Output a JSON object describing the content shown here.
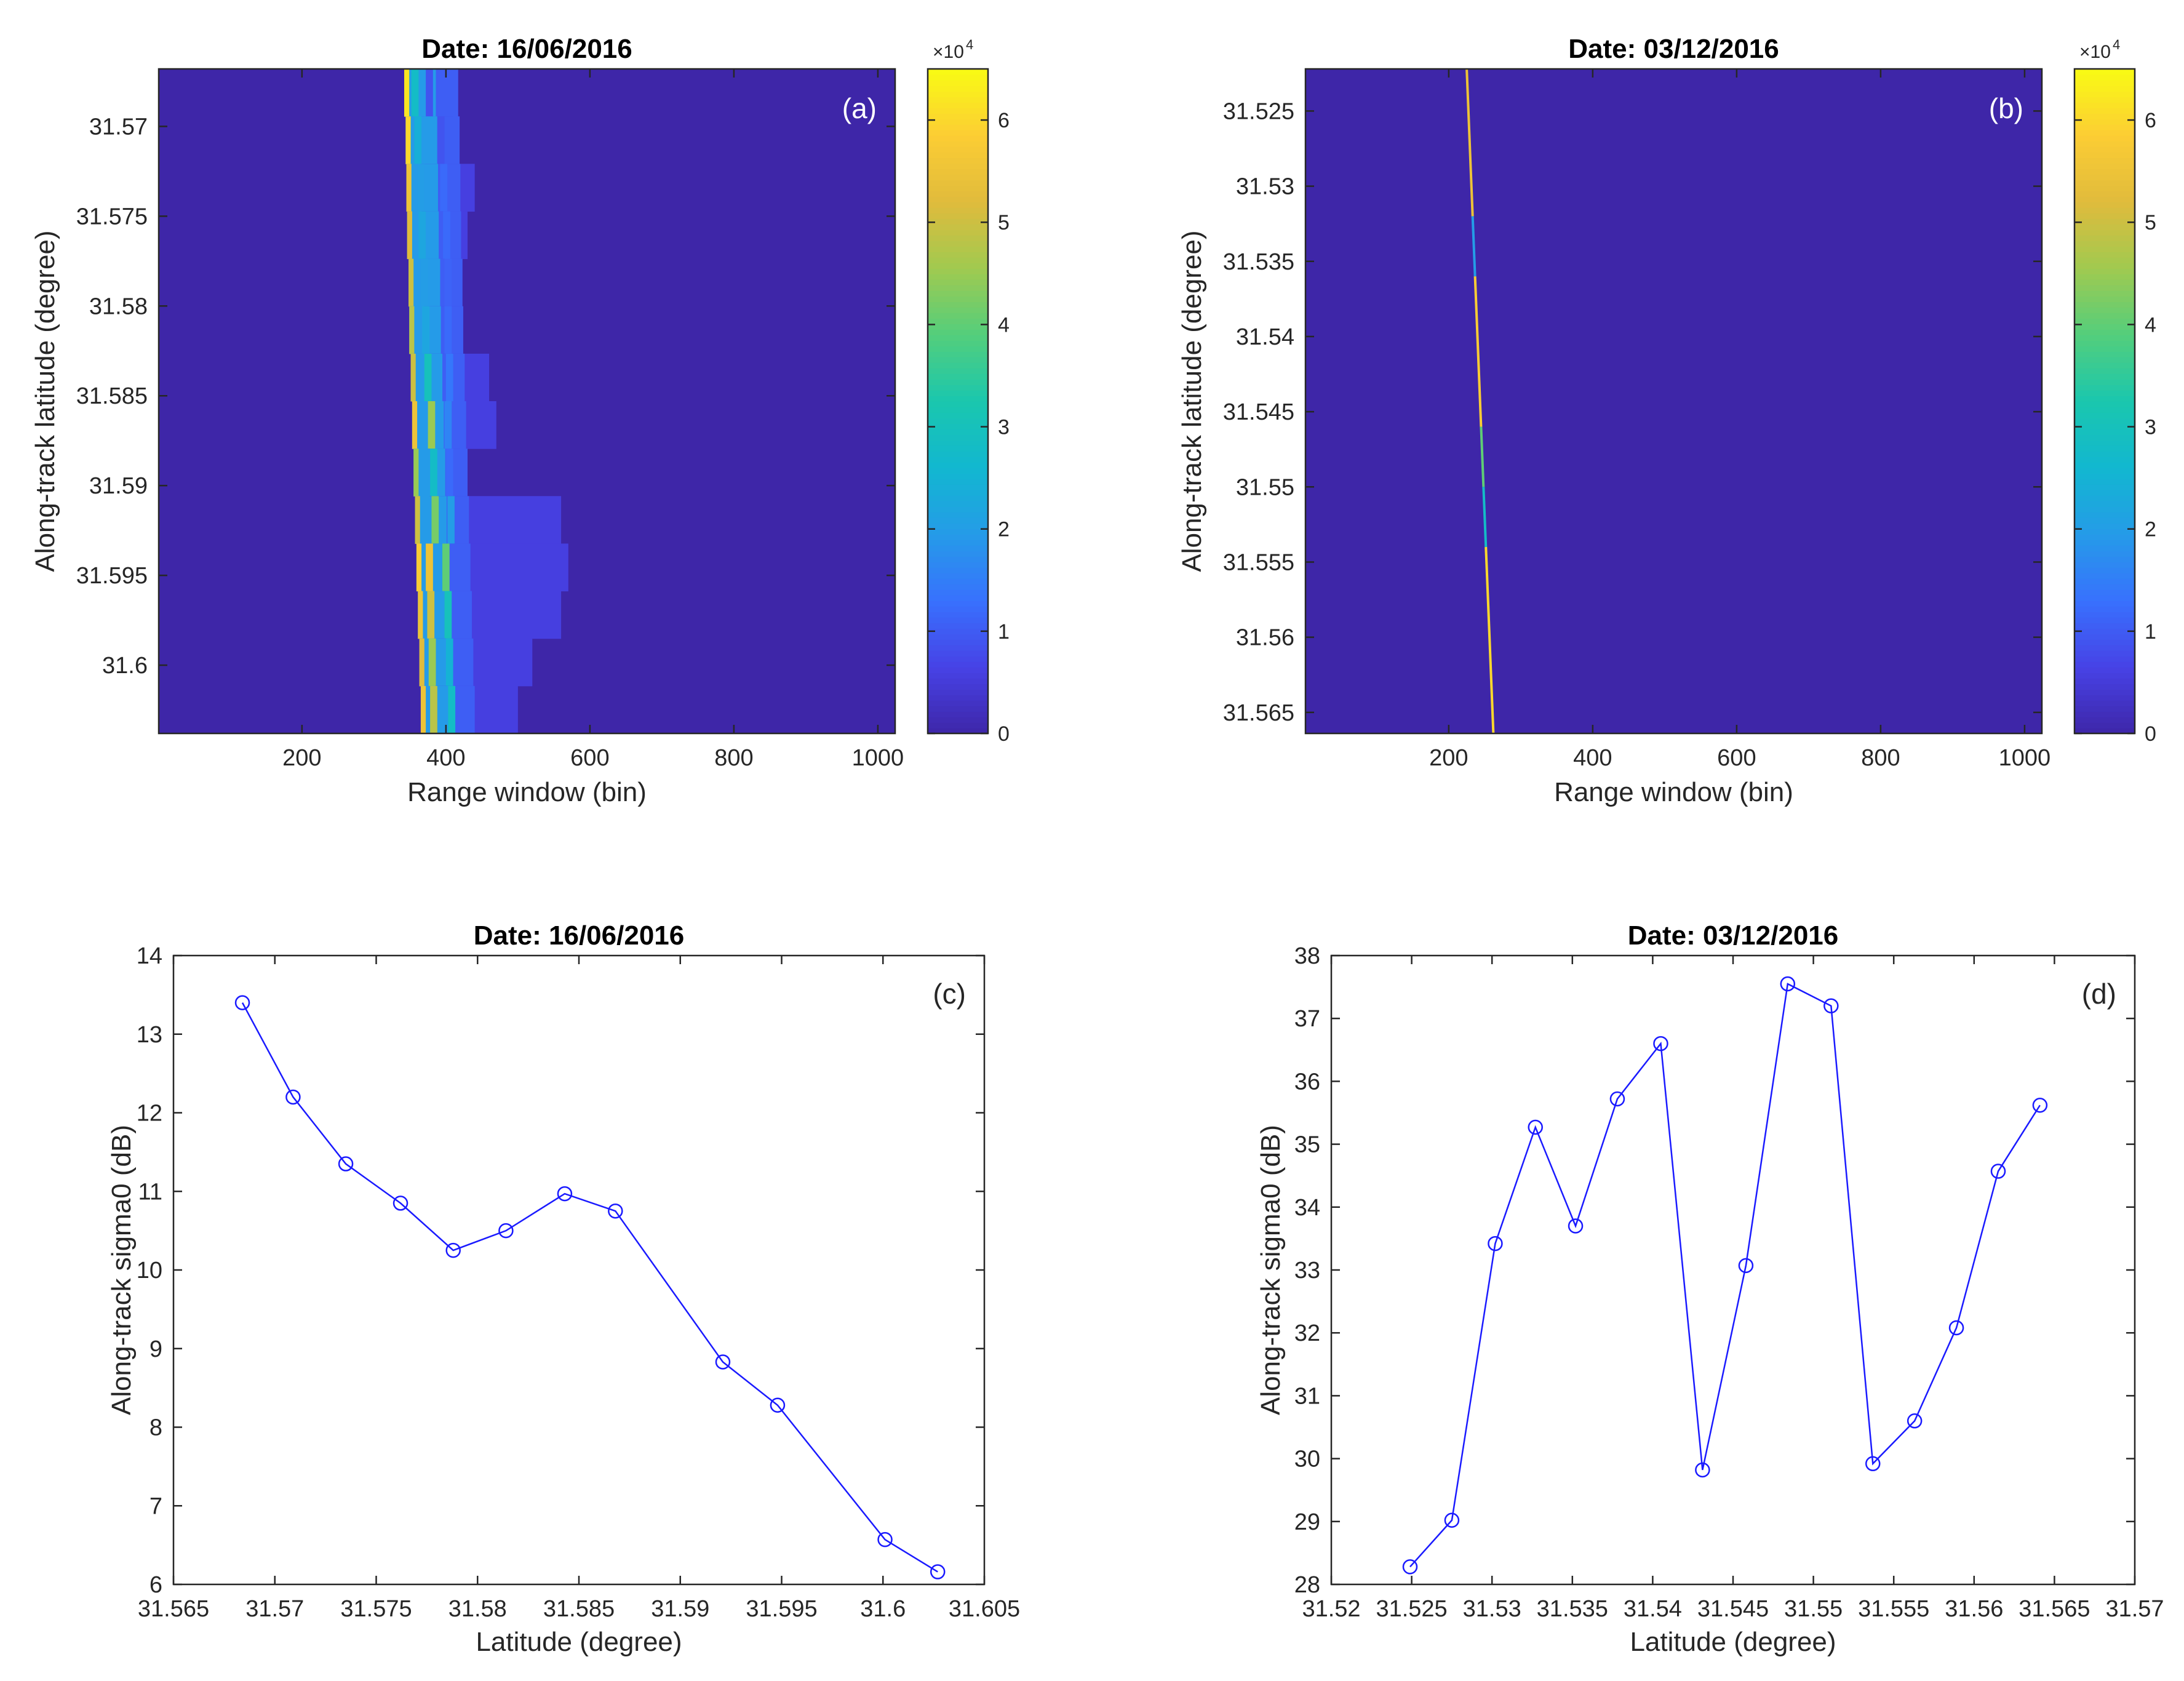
{
  "figure": {
    "panels": [
      {
        "id": "a",
        "title": "Date: 16/06/2016",
        "tag": "(a)",
        "colorbar_exponent": "×10",
        "colorbar_exponent_power": "4"
      },
      {
        "id": "b",
        "title": "Date: 03/12/2016",
        "tag": "(b)",
        "colorbar_exponent": "×10",
        "colorbar_exponent_power": "4"
      },
      {
        "id": "c",
        "title": "Date: 16/06/2016",
        "tag": "(c)"
      },
      {
        "id": "d",
        "title": "Date: 03/12/2016",
        "tag": "(d)"
      }
    ]
  },
  "colors": {
    "series_line": "#1a1aff",
    "heatmap_background": "#3d2aa1"
  },
  "chart_data": [
    {
      "id": "a",
      "type": "heatmap",
      "title": "Date: 16/06/2016",
      "xlabel": "Range window (bin)",
      "ylabel": "Along-track latitude (degree)",
      "xlim": [
        1,
        1024
      ],
      "ylim": [
        31.5668,
        31.6038
      ],
      "y_reversed": true,
      "xticks": [
        200,
        400,
        600,
        800,
        1000
      ],
      "yticks": [
        31.57,
        31.575,
        31.58,
        31.585,
        31.59,
        31.595,
        31.6
      ],
      "ytick_labels": [
        "31.57",
        "31.575",
        "31.58",
        "31.585",
        "31.59",
        "31.595",
        "31.6"
      ],
      "colorbar": {
        "min": 0,
        "max": 65000,
        "ticks": [
          0,
          1,
          2,
          3,
          4,
          5,
          6
        ],
        "multiplier": 10000,
        "colormap": "parula"
      },
      "waveforms": [
        {
          "lat": 31.5684,
          "leading_bin": 342,
          "peak": 62000,
          "tail": 380,
          "streaks": [
            {
              "bin": 352,
              "v": 28000
            },
            {
              "bin": 372,
              "v": 9000
            }
          ]
        },
        {
          "lat": 31.571,
          "leading_bin": 344,
          "peak": 60000,
          "tail": 410,
          "streaks": [
            {
              "bin": 356,
              "v": 24000
            },
            {
              "bin": 388,
              "v": 9000
            }
          ]
        },
        {
          "lat": 31.5736,
          "leading_bin": 345,
          "peak": 55000,
          "tail": 440,
          "streaks": [
            {
              "bin": 360,
              "v": 20000
            },
            {
              "bin": 392,
              "v": 12000
            }
          ]
        },
        {
          "lat": 31.5762,
          "leading_bin": 346,
          "peak": 52000,
          "tail": 430,
          "streaks": [
            {
              "bin": 362,
              "v": 22000
            },
            {
              "bin": 396,
              "v": 12000
            }
          ]
        },
        {
          "lat": 31.5788,
          "leading_bin": 348,
          "peak": 50000,
          "tail": 420,
          "streaks": [
            {
              "bin": 365,
              "v": 20000
            },
            {
              "bin": 398,
              "v": 11000
            }
          ]
        },
        {
          "lat": 31.5814,
          "leading_bin": 349,
          "peak": 48000,
          "tail": 420,
          "streaks": [
            {
              "bin": 367,
              "v": 22000
            },
            {
              "bin": 398,
              "v": 12000
            }
          ]
        },
        {
          "lat": 31.584,
          "leading_bin": 351,
          "peak": 50000,
          "tail": 460,
          "streaks": [
            {
              "bin": 370,
              "v": 30000
            },
            {
              "bin": 400,
              "v": 14000
            }
          ]
        },
        {
          "lat": 31.5866,
          "leading_bin": 353,
          "peak": 55000,
          "tail": 470,
          "streaks": [
            {
              "bin": 375,
              "v": 45000
            },
            {
              "bin": 398,
              "v": 16000
            }
          ]
        },
        {
          "lat": 31.5892,
          "leading_bin": 355,
          "peak": 45000,
          "tail": 420,
          "streaks": [
            {
              "bin": 378,
              "v": 28000
            },
            {
              "bin": 400,
              "v": 12000
            }
          ]
        },
        {
          "lat": 31.5918,
          "leading_bin": 357,
          "peak": 50000,
          "tail": 560,
          "streaks": [
            {
              "bin": 380,
              "v": 42000
            },
            {
              "bin": 402,
              "v": 20000
            }
          ]
        },
        {
          "lat": 31.5944,
          "leading_bin": 359,
          "peak": 58000,
          "tail": 570,
          "streaks": [
            {
              "bin": 372,
              "v": 55000
            },
            {
              "bin": 395,
              "v": 40000
            }
          ]
        },
        {
          "lat": 31.597,
          "leading_bin": 361,
          "peak": 55000,
          "tail": 560,
          "streaks": [
            {
              "bin": 374,
              "v": 50000
            },
            {
              "bin": 398,
              "v": 30000
            }
          ]
        },
        {
          "lat": 31.5996,
          "leading_bin": 363,
          "peak": 52000,
          "tail": 520,
          "streaks": [
            {
              "bin": 376,
              "v": 45000
            },
            {
              "bin": 400,
              "v": 25000
            }
          ]
        },
        {
          "lat": 31.6022,
          "leading_bin": 365,
          "peak": 55000,
          "tail": 500,
          "streaks": [
            {
              "bin": 378,
              "v": 48000
            },
            {
              "bin": 403,
              "v": 28000
            }
          ]
        }
      ]
    },
    {
      "id": "b",
      "type": "heatmap",
      "title": "Date: 03/12/2016",
      "xlabel": "Range window (bin)",
      "ylabel": "Along-track latitude (degree)",
      "xlim": [
        1,
        1024
      ],
      "ylim": [
        31.5222,
        31.5664
      ],
      "y_reversed": true,
      "xticks": [
        200,
        400,
        600,
        800,
        1000
      ],
      "yticks": [
        31.525,
        31.53,
        31.535,
        31.54,
        31.545,
        31.55,
        31.555,
        31.56,
        31.565
      ],
      "ytick_labels": [
        "31.525",
        "31.53",
        "31.535",
        "31.54",
        "31.545",
        "31.55",
        "31.555",
        "31.56",
        "31.565"
      ],
      "colorbar": {
        "min": 0,
        "max": 65000,
        "ticks": [
          0,
          1,
          2,
          3,
          4,
          5,
          6
        ],
        "multiplier": 10000,
        "colormap": "parula"
      },
      "peak_line": {
        "start": {
          "lat": 31.5222,
          "bin": 225
        },
        "end": {
          "lat": 31.5664,
          "bin": 262
        },
        "segments": [
          {
            "lat_from": 31.5222,
            "lat_to": 31.532,
            "v": 55000
          },
          {
            "lat_from": 31.532,
            "lat_to": 31.536,
            "v": 20000
          },
          {
            "lat_from": 31.536,
            "lat_to": 31.546,
            "v": 58000
          },
          {
            "lat_from": 31.546,
            "lat_to": 31.55,
            "v": 40000
          },
          {
            "lat_from": 31.55,
            "lat_to": 31.554,
            "v": 28000
          },
          {
            "lat_from": 31.554,
            "lat_to": 31.5664,
            "v": 60000
          }
        ]
      }
    },
    {
      "id": "c",
      "type": "line",
      "title": "Date: 16/06/2016",
      "xlabel": "Latitude (degree)",
      "ylabel": "Along-track sigma0 (dB)",
      "xlim": [
        31.565,
        31.605
      ],
      "ylim": [
        6,
        14
      ],
      "xticks": [
        31.565,
        31.57,
        31.575,
        31.58,
        31.585,
        31.59,
        31.595,
        31.6,
        31.605
      ],
      "xtick_labels": [
        "31.565",
        "31.57",
        "31.575",
        "31.58",
        "31.585",
        "31.59",
        "31.595",
        "31.6",
        "31.605"
      ],
      "yticks": [
        6,
        7,
        8,
        9,
        10,
        11,
        12,
        13,
        14
      ],
      "series": [
        {
          "name": "sigma0",
          "marker": "circle",
          "x": [
            31.5684,
            31.5709,
            31.5735,
            31.5762,
            31.5788,
            31.5814,
            31.5843,
            31.5868,
            31.5921,
            31.5948,
            31.6001,
            31.6027
          ],
          "y": [
            13.4,
            12.2,
            11.35,
            10.85,
            10.25,
            10.5,
            10.97,
            10.75,
            8.83,
            8.28,
            6.57,
            6.16
          ]
        }
      ]
    },
    {
      "id": "d",
      "type": "line",
      "title": "Date: 03/12/2016",
      "xlabel": "Latitude (degree)",
      "ylabel": "Along-track sigma0 (dB)",
      "xlim": [
        31.52,
        31.57
      ],
      "ylim": [
        28,
        38
      ],
      "xticks": [
        31.52,
        31.525,
        31.53,
        31.535,
        31.54,
        31.545,
        31.55,
        31.555,
        31.56,
        31.565,
        31.57
      ],
      "xtick_labels": [
        "31.52",
        "31.525",
        "31.53",
        "31.535",
        "31.54",
        "31.545",
        "31.55",
        "31.555",
        "31.56",
        "31.565",
        "31.57"
      ],
      "yticks": [
        28,
        29,
        30,
        31,
        32,
        33,
        34,
        35,
        36,
        37,
        38
      ],
      "series": [
        {
          "name": "sigma0",
          "marker": "circle",
          "x": [
            31.5249,
            31.5275,
            31.5302,
            31.5327,
            31.5352,
            31.5378,
            31.5405,
            31.5431,
            31.5458,
            31.5484,
            31.5511,
            31.5537,
            31.5563,
            31.5589,
            31.5615,
            31.5641
          ],
          "y": [
            28.28,
            29.02,
            33.42,
            35.27,
            33.7,
            35.72,
            36.6,
            29.82,
            33.07,
            37.55,
            37.2,
            29.92,
            30.6,
            32.08,
            34.57,
            35.62
          ]
        }
      ]
    }
  ]
}
